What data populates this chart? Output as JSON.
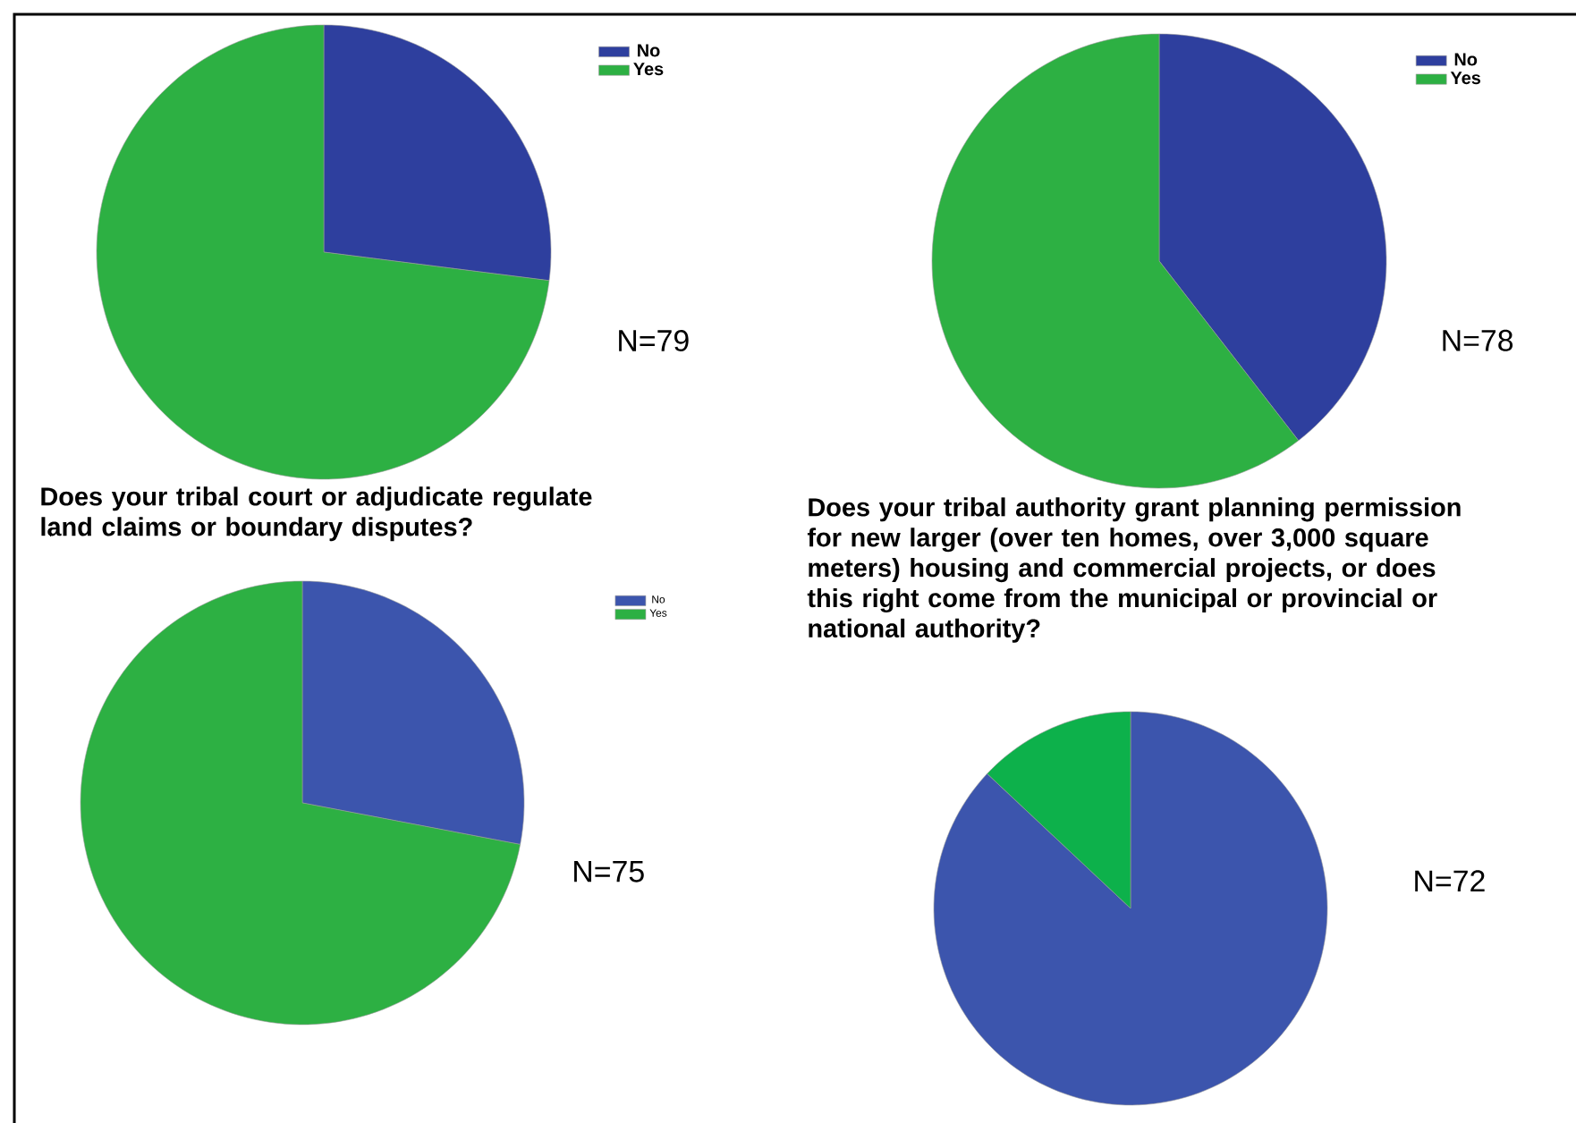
{
  "chart_data": [
    {
      "type": "pie",
      "categories": [
        "No",
        "Yes"
      ],
      "values": [
        27,
        73
      ],
      "colors": [
        "#2e3f9e",
        "#2db043"
      ],
      "legend": "top right",
      "annotations": [
        "N=79"
      ]
    },
    {
      "type": "pie",
      "categories": [
        "No",
        "Yes"
      ],
      "values": [
        39.5,
        60.5
      ],
      "colors": [
        "#2e3f9e",
        "#2db043"
      ],
      "legend": "top right",
      "annotations": [
        "N=78"
      ]
    },
    {
      "type": "pie",
      "title": "Does your tribal court or adjudicate regulate land claims or boundary disputes?",
      "categories": [
        "No",
        "Yes"
      ],
      "values": [
        28,
        72
      ],
      "colors": [
        "#3c55ad",
        "#2db043"
      ],
      "legend": "top right",
      "annotations": [
        "N=75"
      ]
    },
    {
      "type": "pie",
      "title": "Does your tribal authority grant planning permission for new larger (over ten homes, over 3,000 square meters) housing and commercial projects, or does this right come from the municipal or provincial or national authority?",
      "categories": [
        null,
        null
      ],
      "values": [
        87,
        13
      ],
      "colors": [
        "#3c55ad",
        "#0db14b"
      ],
      "legend": false,
      "annotations": [
        "N=72"
      ]
    }
  ]
}
